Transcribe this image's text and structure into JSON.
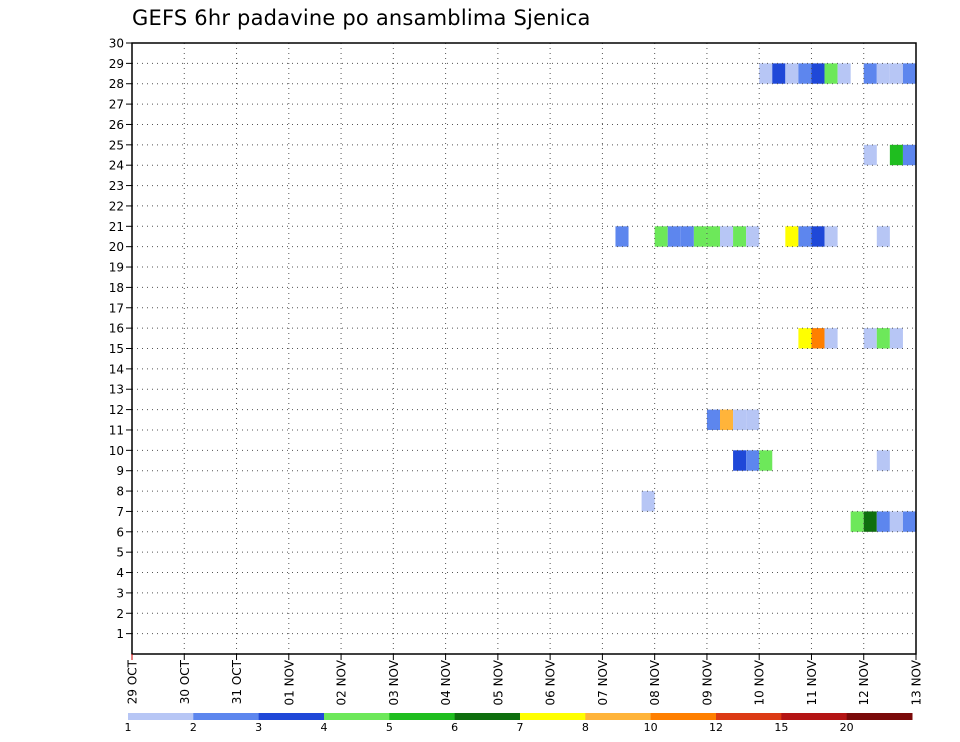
{
  "chart_data": {
    "type": "heatmap",
    "title": "GEFS 6hr padavine po ansamblima Sjenica",
    "x_start": "2024-10-29",
    "x_days": 15,
    "y_range": [
      0,
      30
    ],
    "x_tick_labels": [
      "29 OCT",
      "30 OCT",
      "31 OCT",
      "01 NOV",
      "02 NOV",
      "03 NOV",
      "04 NOV",
      "05 NOV",
      "06 NOV",
      "07 NOV",
      "08 NOV",
      "09 NOV",
      "10 NOV",
      "11 NOV",
      "12 NOV",
      "13 NOV"
    ],
    "y_tick_labels": [
      "1",
      "2",
      "3",
      "4",
      "5",
      "6",
      "7",
      "8",
      "9",
      "10",
      "11",
      "12",
      "13",
      "14",
      "15",
      "16",
      "17",
      "18",
      "19",
      "20",
      "21",
      "22",
      "23",
      "24",
      "25",
      "26",
      "27",
      "28",
      "29",
      "30"
    ],
    "grid": true,
    "legend": {
      "colors": [
        "#b7c6f5",
        "#5d86ee",
        "#1f48d8",
        "#6de85a",
        "#1fbe1f",
        "#0e6f0e",
        "#ffff00",
        "#ffb43a",
        "#ff7f00",
        "#dc3a14",
        "#b41414",
        "#7a0a0a"
      ],
      "labels": [
        "1",
        "2",
        "3",
        "4",
        "5",
        "6",
        "7",
        "8",
        "10",
        "12",
        "15",
        "20"
      ]
    },
    "cells": [
      {
        "m": 29,
        "t": "10 NOV 00Z",
        "v": 1
      },
      {
        "m": 29,
        "t": "10 NOV 06Z",
        "v": 3
      },
      {
        "m": 29,
        "t": "10 NOV 12Z",
        "v": 1
      },
      {
        "m": 29,
        "t": "10 NOV 18Z",
        "v": 2
      },
      {
        "m": 29,
        "t": "11 NOV 00Z",
        "v": 3
      },
      {
        "m": 29,
        "t": "11 NOV 06Z",
        "v": 4
      },
      {
        "m": 29,
        "t": "11 NOV 12Z",
        "v": 1
      },
      {
        "m": 29,
        "t": "12 NOV 00Z",
        "v": 2
      },
      {
        "m": 29,
        "t": "12 NOV 06Z",
        "v": 1
      },
      {
        "m": 29,
        "t": "12 NOV 12Z",
        "v": 1
      },
      {
        "m": 29,
        "t": "12 NOV 18Z",
        "v": 2
      },
      {
        "m": 25,
        "t": "12 NOV 00Z",
        "v": 1
      },
      {
        "m": 25,
        "t": "12 NOV 12Z",
        "v": 5
      },
      {
        "m": 25,
        "t": "12 NOV 18Z",
        "v": 2
      },
      {
        "m": 21,
        "t": "07 NOV 06Z",
        "v": 2
      },
      {
        "m": 21,
        "t": "08 NOV 00Z",
        "v": 4
      },
      {
        "m": 21,
        "t": "08 NOV 06Z",
        "v": 2
      },
      {
        "m": 21,
        "t": "08 NOV 12Z",
        "v": 2
      },
      {
        "m": 21,
        "t": "08 NOV 18Z",
        "v": 4
      },
      {
        "m": 21,
        "t": "09 NOV 00Z",
        "v": 4
      },
      {
        "m": 21,
        "t": "09 NOV 06Z",
        "v": 1
      },
      {
        "m": 21,
        "t": "09 NOV 12Z",
        "v": 4
      },
      {
        "m": 21,
        "t": "09 NOV 18Z",
        "v": 1
      },
      {
        "m": 21,
        "t": "10 NOV 12Z",
        "v": 7
      },
      {
        "m": 21,
        "t": "10 NOV 18Z",
        "v": 2
      },
      {
        "m": 21,
        "t": "11 NOV 00Z",
        "v": 3
      },
      {
        "m": 21,
        "t": "11 NOV 06Z",
        "v": 1
      },
      {
        "m": 21,
        "t": "12 NOV 06Z",
        "v": 1
      },
      {
        "m": 16,
        "t": "10 NOV 18Z",
        "v": 7
      },
      {
        "m": 16,
        "t": "11 NOV 00Z",
        "v": 10
      },
      {
        "m": 16,
        "t": "11 NOV 06Z",
        "v": 1
      },
      {
        "m": 16,
        "t": "12 NOV 00Z",
        "v": 1
      },
      {
        "m": 16,
        "t": "12 NOV 06Z",
        "v": 4
      },
      {
        "m": 16,
        "t": "12 NOV 12Z",
        "v": 1
      },
      {
        "m": 12,
        "t": "09 NOV 00Z",
        "v": 2
      },
      {
        "m": 12,
        "t": "09 NOV 06Z",
        "v": 8
      },
      {
        "m": 12,
        "t": "09 NOV 12Z",
        "v": 1
      },
      {
        "m": 12,
        "t": "09 NOV 18Z",
        "v": 1
      },
      {
        "m": 10,
        "t": "09 NOV 12Z",
        "v": 3
      },
      {
        "m": 10,
        "t": "09 NOV 18Z",
        "v": 2
      },
      {
        "m": 10,
        "t": "10 NOV 00Z",
        "v": 4
      },
      {
        "m": 10,
        "t": "12 NOV 06Z",
        "v": 1
      },
      {
        "m": 8,
        "t": "07 NOV 18Z",
        "v": 1
      },
      {
        "m": 7,
        "t": "11 NOV 18Z",
        "v": 4
      },
      {
        "m": 7,
        "t": "12 NOV 00Z",
        "v": 6
      },
      {
        "m": 7,
        "t": "12 NOV 06Z",
        "v": 2
      },
      {
        "m": 7,
        "t": "12 NOV 12Z",
        "v": 1
      },
      {
        "m": 7,
        "t": "12 NOV 18Z",
        "v": 2
      }
    ]
  }
}
